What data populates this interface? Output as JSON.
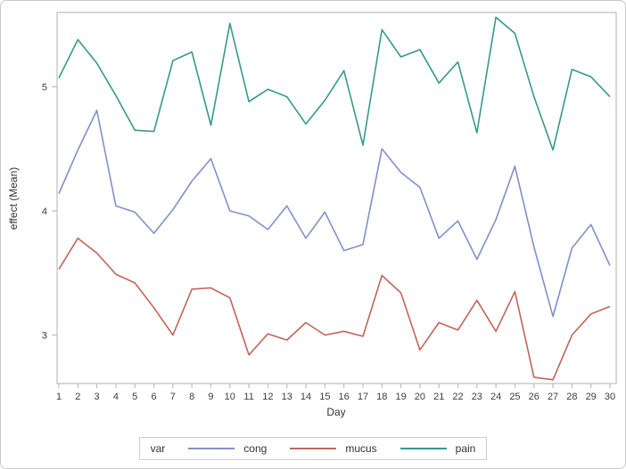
{
  "figure": {
    "kind": "SAS series plot",
    "background": "#ffffff",
    "frame_color": "#bdbdbd"
  },
  "y_axis": {
    "label": "effect (Mean)",
    "ticks": [
      3,
      4,
      5
    ]
  },
  "x_axis": {
    "label": "Day",
    "ticks": [
      1,
      2,
      3,
      4,
      5,
      6,
      7,
      8,
      9,
      10,
      11,
      12,
      13,
      14,
      15,
      16,
      17,
      18,
      19,
      20,
      21,
      22,
      23,
      24,
      25,
      26,
      27,
      28,
      29,
      30
    ]
  },
  "legend": {
    "title": "var",
    "entries": [
      {
        "label": "cong",
        "color": "#8290c8"
      },
      {
        "label": "mucus",
        "color": "#c0655a"
      },
      {
        "label": "pain",
        "color": "#35998a"
      }
    ]
  },
  "chart_data": {
    "type": "line",
    "x": [
      1,
      2,
      3,
      4,
      5,
      6,
      7,
      8,
      9,
      10,
      11,
      12,
      13,
      14,
      15,
      16,
      17,
      18,
      19,
      20,
      21,
      22,
      23,
      24,
      25,
      26,
      27,
      28,
      29,
      30
    ],
    "series": [
      {
        "name": "cong",
        "color": "#8290c8",
        "values": [
          4.14,
          4.49,
          4.81,
          4.04,
          3.99,
          3.82,
          4.01,
          4.24,
          4.42,
          4.0,
          3.96,
          3.85,
          4.04,
          3.78,
          3.99,
          3.68,
          3.73,
          4.5,
          4.31,
          4.19,
          3.78,
          3.92,
          3.61,
          3.93,
          4.36,
          3.71,
          3.15,
          3.7,
          3.89,
          3.56
        ]
      },
      {
        "name": "mucus",
        "color": "#c0655a",
        "values": [
          3.53,
          3.78,
          3.66,
          3.49,
          3.42,
          3.22,
          3.0,
          3.37,
          3.38,
          3.3,
          2.84,
          3.01,
          2.96,
          3.1,
          3.0,
          3.03,
          2.99,
          3.48,
          3.34,
          2.88,
          3.1,
          3.04,
          3.28,
          3.03,
          3.35,
          2.66,
          2.64,
          3.0,
          3.17,
          3.23
        ]
      },
      {
        "name": "pain",
        "color": "#35998a",
        "values": [
          5.07,
          5.38,
          5.19,
          4.93,
          4.65,
          4.64,
          5.21,
          5.28,
          4.69,
          5.51,
          4.88,
          4.98,
          4.92,
          4.7,
          4.89,
          5.13,
          4.53,
          5.46,
          5.24,
          5.3,
          5.03,
          5.2,
          4.63,
          5.56,
          5.43,
          4.92,
          4.49,
          5.14,
          5.08,
          4.92
        ]
      }
    ],
    "title": "",
    "xlabel": "Day",
    "ylabel": "effect (Mean)",
    "ylim": [
      2.6,
      5.6
    ],
    "xlim": [
      1,
      30
    ],
    "grid": false,
    "legend_position": "bottom"
  }
}
